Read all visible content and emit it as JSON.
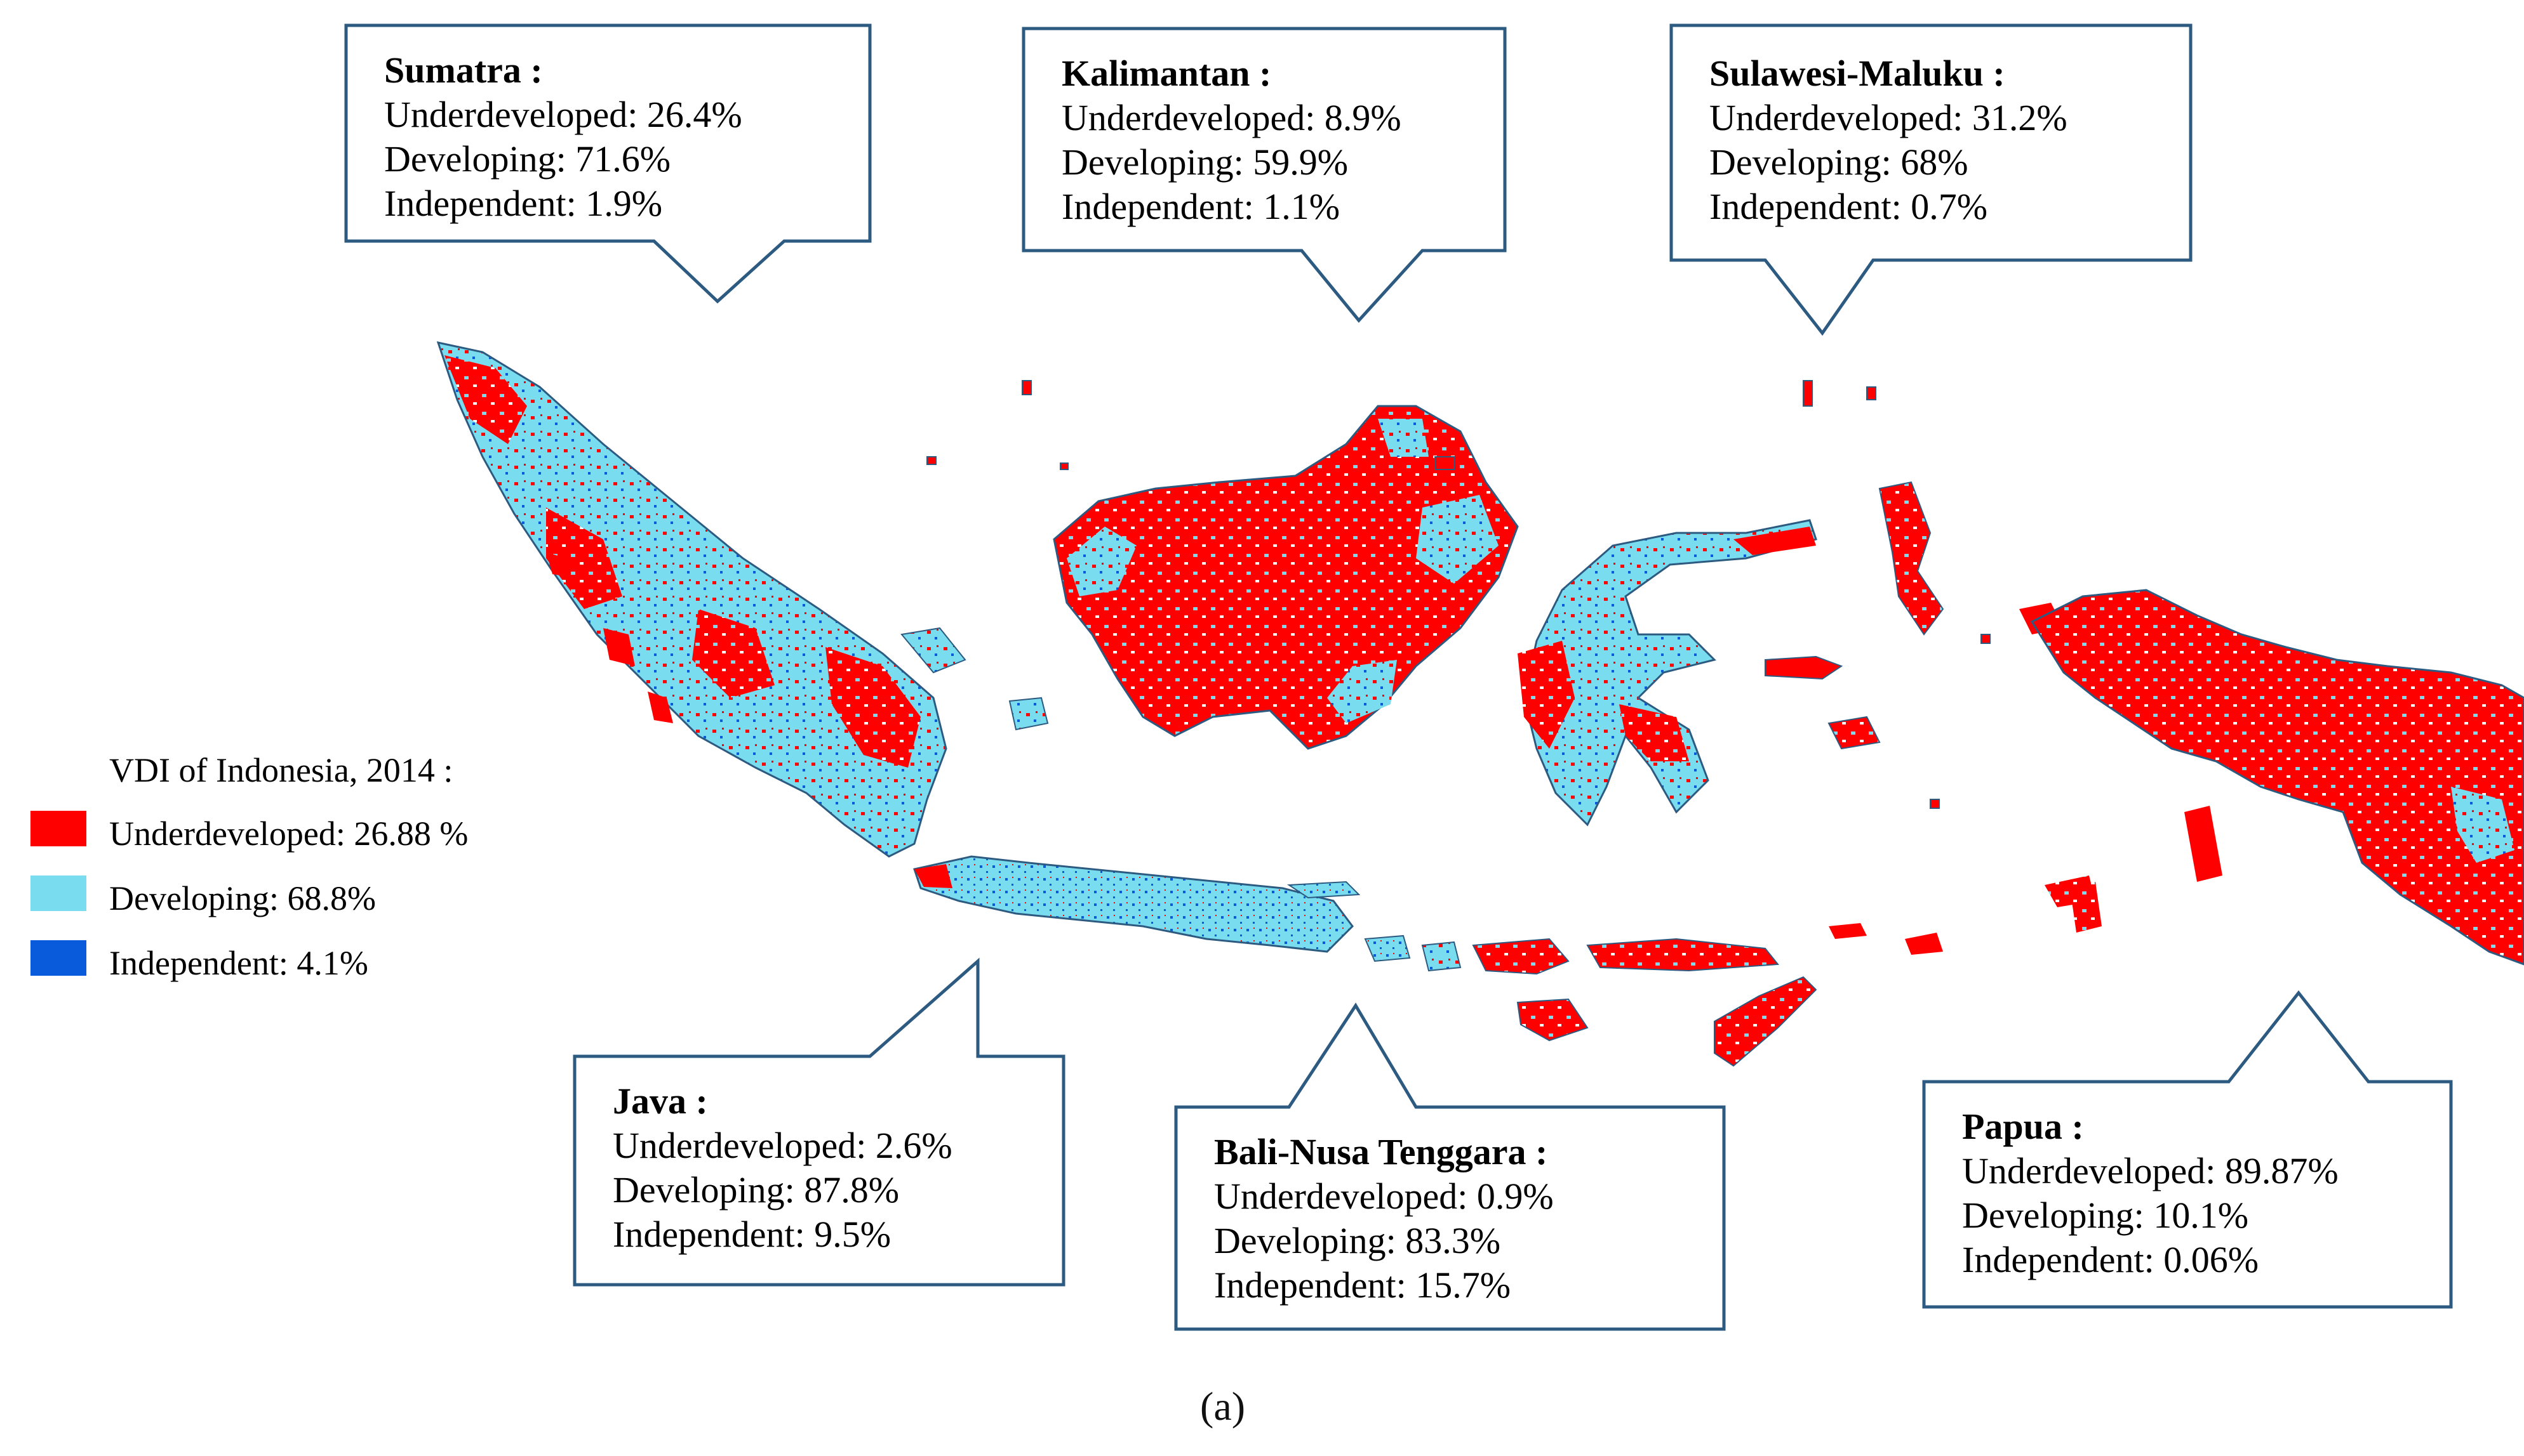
{
  "legend": {
    "title": "VDI of Indonesia, 2014 :",
    "items": [
      {
        "label": "Underdeveloped: 26.88 %",
        "color": "#ff0000"
      },
      {
        "label": "Developing: 68.8%",
        "color": "#79dcef"
      },
      {
        "label": "Independent: 4.1%",
        "color": "#0a5bdc"
      }
    ]
  },
  "regions": [
    {
      "name": "Sumatra :",
      "underdeveloped": "Underdeveloped: 26.4%",
      "developing": "Developing: 71.6%",
      "independent": "Independent: 1.9%"
    },
    {
      "name": "Kalimantan :",
      "underdeveloped": "Underdeveloped: 8.9%",
      "developing": "Developing: 59.9%",
      "independent": "Independent: 1.1%"
    },
    {
      "name": "Sulawesi-Maluku :",
      "underdeveloped": "Underdeveloped: 31.2%",
      "developing": "Developing: 68%",
      "independent": "Independent: 0.7%"
    },
    {
      "name": "Java :",
      "underdeveloped": "Underdeveloped: 2.6%",
      "developing": "Developing: 87.8%",
      "independent": "Independent: 9.5%"
    },
    {
      "name": "Bali-Nusa Tenggara :",
      "underdeveloped": "Underdeveloped: 0.9%",
      "developing": "Developing: 83.3%",
      "independent": "Independent: 15.7%"
    },
    {
      "name": "Papua :",
      "underdeveloped": "Underdeveloped: 89.87%",
      "developing": "Developing: 10.1%",
      "independent": "Independent: 0.06%"
    }
  ],
  "caption": "(a)",
  "colors": {
    "underdeveloped": "#ff0000",
    "developing": "#79dcef",
    "independent": "#0a5bdc",
    "border": "#2c5a80"
  }
}
